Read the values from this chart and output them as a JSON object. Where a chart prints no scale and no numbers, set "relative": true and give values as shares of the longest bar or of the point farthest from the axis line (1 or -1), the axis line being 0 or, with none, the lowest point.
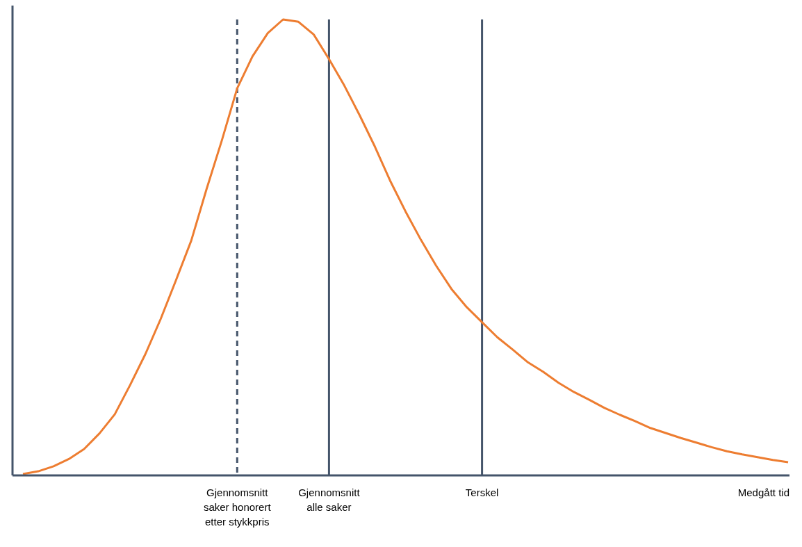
{
  "chart_data": {
    "type": "line",
    "relative": true,
    "xlabel": "Medgått tid",
    "categories": [
      null,
      null,
      null,
      null,
      null,
      null,
      null,
      null,
      null,
      null,
      null,
      null,
      null,
      null,
      "Gjennomsnitt saker honorert etter stykkpris",
      null,
      null,
      null,
      null,
      null,
      "Gjennomsnitt alle saker",
      null,
      null,
      null,
      null,
      null,
      null,
      null,
      null,
      null,
      "Terskel",
      null,
      null,
      null,
      null,
      null,
      null,
      null,
      null,
      null,
      null,
      null,
      null,
      null,
      null,
      null,
      null,
      null,
      null,
      null,
      null
    ],
    "series": [
      {
        "color": "#ed7d31",
        "values": [
          0.003,
          0.009,
          0.02,
          0.036,
          0.058,
          0.092,
          0.134,
          0.198,
          0.266,
          0.343,
          0.428,
          0.515,
          0.628,
          0.735,
          0.849,
          0.919,
          0.97,
          1,
          0.995,
          0.967,
          0.913,
          0.855,
          0.79,
          0.721,
          0.646,
          0.579,
          0.517,
          0.46,
          0.409,
          0.369,
          0.336,
          0.303,
          0.276,
          0.248,
          0.227,
          0.203,
          0.183,
          0.166,
          0.148,
          0.133,
          0.119,
          0.104,
          0.093,
          0.082,
          0.072,
          0.062,
          0.053,
          0.046,
          0.04,
          0.034,
          0.029
        ]
      }
    ],
    "ref_lines": [
      {
        "axis": "x",
        "value": "Gjennomsnitt saker honorert etter stykkpris",
        "color": "#44546a",
        "line_style": "dashed"
      },
      {
        "axis": "x",
        "value": "Gjennomsnitt alle saker",
        "color": "#44546a",
        "line_style": "solid"
      },
      {
        "axis": "x",
        "value": "Terskel",
        "color": "#44546a",
        "line_style": "solid"
      }
    ]
  }
}
